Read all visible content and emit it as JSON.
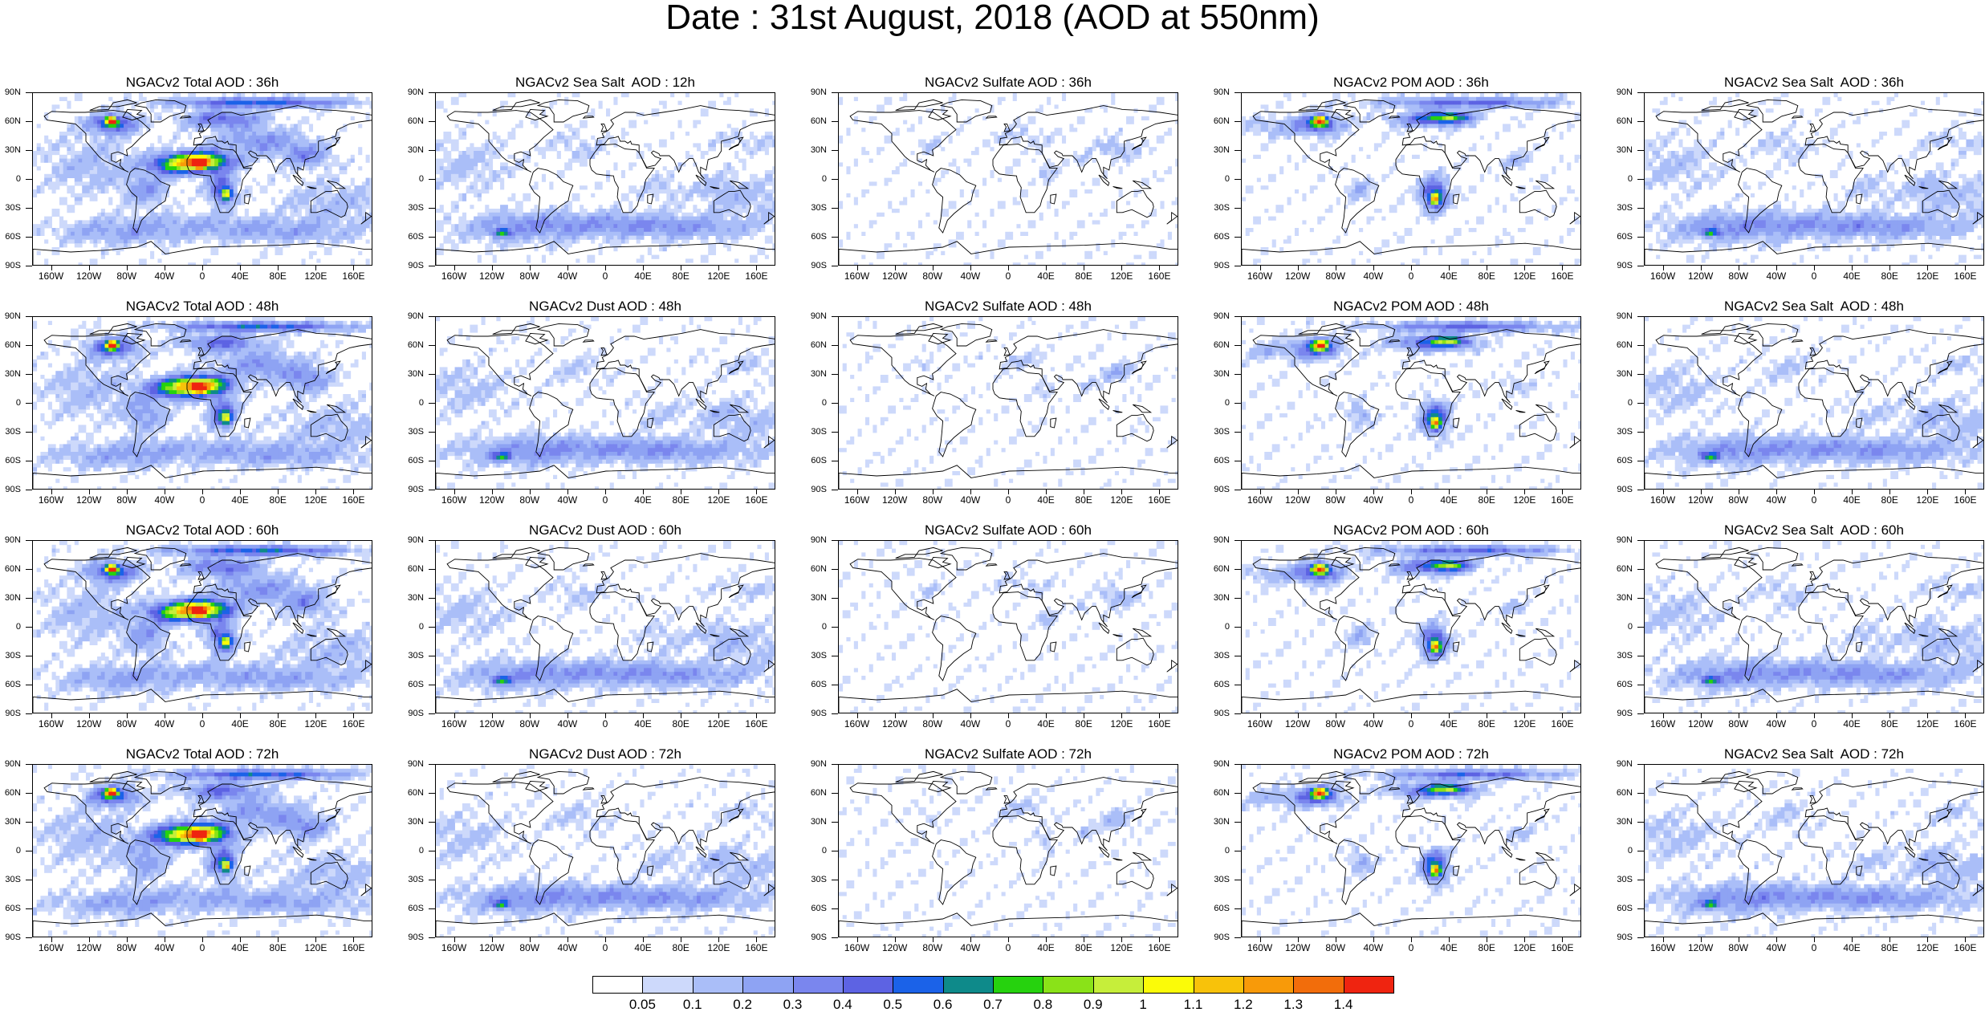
{
  "title": "Date : 31st August, 2018 (AOD at 550nm)",
  "lat_labels": [
    "90N",
    "60N",
    "30N",
    "0",
    "30S",
    "60S",
    "90S"
  ],
  "lon_labels": [
    "160W",
    "120W",
    "80W",
    "40W",
    "0",
    "40E",
    "80E",
    "120E",
    "160E"
  ],
  "panels": [
    [
      "NGACv2 Total AOD : 36h",
      "NGACv2 Sea Salt  AOD : 12h",
      "NGACv2 Sulfate AOD : 36h",
      "NGACv2 POM AOD : 36h",
      "NGACv2 Sea Salt  AOD : 36h"
    ],
    [
      "NGACv2 Total AOD : 48h",
      "NGACv2 Dust AOD : 48h",
      "NGACv2 Sulfate AOD : 48h",
      "NGACv2 POM AOD : 48h",
      "NGACv2 Sea Salt  AOD : 48h"
    ],
    [
      "NGACv2 Total AOD : 60h",
      "NGACv2 Dust AOD : 60h",
      "NGACv2 Sulfate AOD : 60h",
      "NGACv2 POM AOD : 60h",
      "NGACv2 Sea Salt  AOD : 60h"
    ],
    [
      "NGACv2 Total AOD : 72h",
      "NGACv2 Dust AOD : 72h",
      "NGACv2 Sulfate AOD : 72h",
      "NGACv2 POM AOD : 72h",
      "NGACv2 Sea Salt  AOD : 72h"
    ]
  ],
  "colorbar": {
    "labels": [
      "0.05",
      "0.1",
      "0.2",
      "0.3",
      "0.4",
      "0.5",
      "0.6",
      "0.7",
      "0.8",
      "0.9",
      "1",
      "1.1",
      "1.2",
      "1.3",
      "1.4"
    ],
    "colors": [
      "#ffffff",
      "#cdd9fb",
      "#aabef8",
      "#8ea3f3",
      "#7a86ee",
      "#5d63e3",
      "#1b62e8",
      "#0e8a8a",
      "#26d20e",
      "#8ae218",
      "#c6ee3a",
      "#fbfb08",
      "#f8c20a",
      "#f89a09",
      "#f26d0b",
      "#ef2410"
    ]
  }
}
